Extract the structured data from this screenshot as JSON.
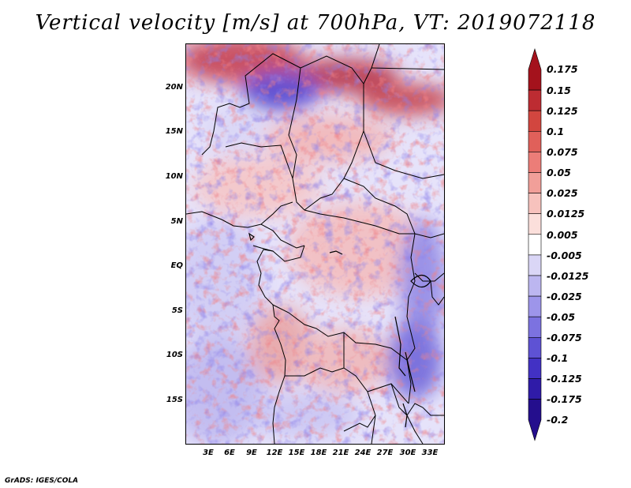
{
  "title": "Vertical velocity [m/s] at 700hPa, VT: 2019072118",
  "y_labels": [
    "20N",
    "15N",
    "10N",
    "5N",
    "EQ",
    "5S",
    "10S",
    "15S"
  ],
  "x_labels": [
    "3E",
    "6E",
    "9E",
    "12E",
    "15E",
    "18E",
    "21E",
    "24E",
    "27E",
    "30E",
    "33E"
  ],
  "colorbar": {
    "labels": [
      "0.175",
      "0.15",
      "0.125",
      "0.1",
      "0.075",
      "0.05",
      "0.025",
      "0.0125",
      "0.005",
      "-0.005",
      "-0.0125",
      "-0.025",
      "-0.05",
      "-0.075",
      "-0.1",
      "-0.125",
      "-0.175",
      "-0.2"
    ],
    "colors": [
      "#a4121c",
      "#bd2c32",
      "#d2463f",
      "#e0605a",
      "#ec7d78",
      "#f19f99",
      "#f7c2bd",
      "#fbdfdb",
      "#ffffff",
      "#dad6f6",
      "#bcb6f0",
      "#9d95ea",
      "#7c72e0",
      "#5e52d4",
      "#4231c4",
      "#2f1ba8",
      "#240e8d"
    ]
  },
  "credit": "GrADS: IGES/COLA"
}
